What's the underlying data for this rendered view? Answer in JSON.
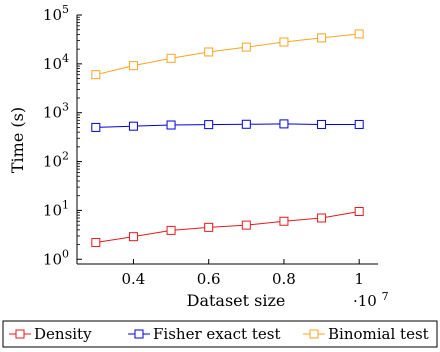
{
  "chart_data": {
    "type": "line",
    "xlabel": "Dataset size",
    "ylabel": "Time (s)",
    "x_multiplier": "·10",
    "x_multiplier_exp": "7",
    "xlim": [
      0.25,
      1.05
    ],
    "ylim": [
      0.8,
      100000
    ],
    "y_scale": "log",
    "x_ticks": [
      "0.4",
      "0.6",
      "0.8",
      "1"
    ],
    "x_tick_values": [
      0.4,
      0.6,
      0.8,
      1.0
    ],
    "y_ticks": [
      {
        "base": "10",
        "exp": "0",
        "value": 1
      },
      {
        "base": "10",
        "exp": "1",
        "value": 10
      },
      {
        "base": "10",
        "exp": "2",
        "value": 100
      },
      {
        "base": "10",
        "exp": "3",
        "value": 1000
      },
      {
        "base": "10",
        "exp": "4",
        "value": 10000
      },
      {
        "base": "10",
        "exp": "5",
        "value": 100000
      }
    ],
    "x": [
      0.3,
      0.4,
      0.5,
      0.6,
      0.7,
      0.8,
      0.9,
      1.0
    ],
    "series": [
      {
        "name": "Density",
        "color": "#e41a1c",
        "values": [
          2.2,
          2.9,
          3.9,
          4.5,
          5.0,
          6.0,
          7.0,
          9.5
        ]
      },
      {
        "name": "Fisher exact test",
        "color": "#0000dd",
        "values": [
          500,
          530,
          560,
          570,
          580,
          590,
          575,
          575
        ]
      },
      {
        "name": "Binomial test",
        "color": "#f5a623",
        "values": [
          6000,
          9200,
          13000,
          17500,
          22000,
          28000,
          34000,
          41000
        ]
      }
    ],
    "grid": false,
    "legend_position": "bottom",
    "marker": "square"
  }
}
